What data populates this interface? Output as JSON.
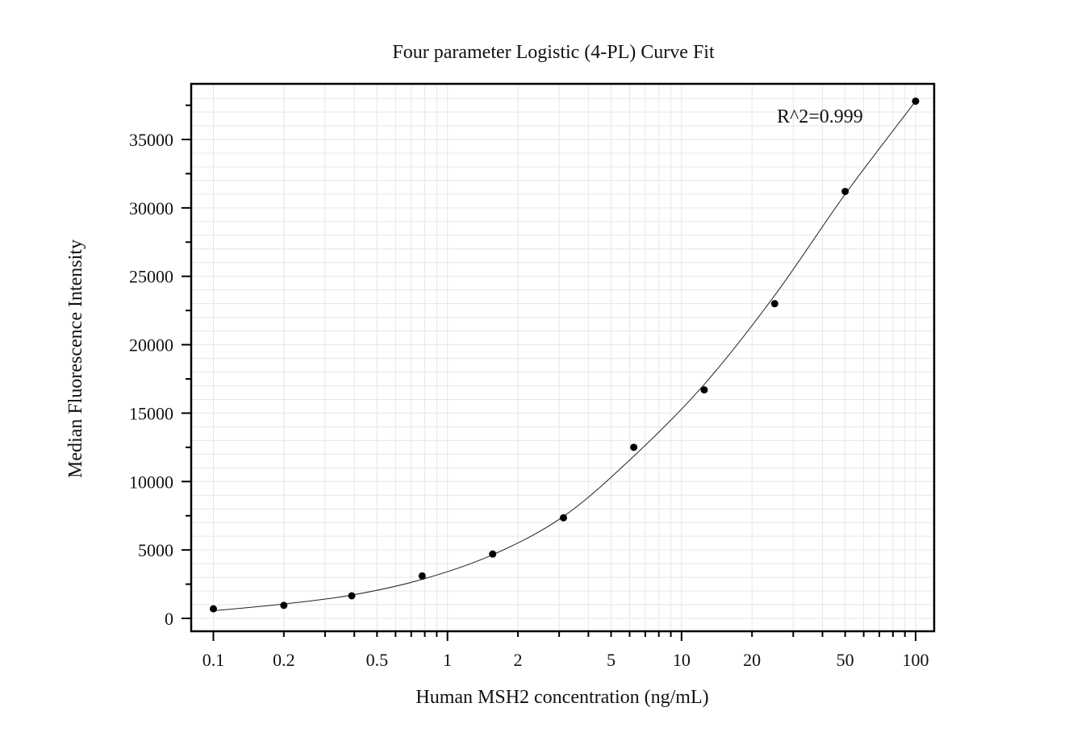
{
  "chart_data": {
    "type": "scatter",
    "title": "Four parameter Logistic (4-PL) Curve Fit",
    "xlabel": "Human MSH2 concentration (ng/mL)",
    "ylabel": "Median Fluorescence Intensity",
    "x_scale": "log",
    "xlim": [
      0.08,
      110
    ],
    "ylim": [
      -1000,
      39000
    ],
    "grid": true,
    "x_ticks": [
      0.1,
      0.2,
      0.5,
      1,
      2,
      5,
      10,
      20,
      50,
      100
    ],
    "x_tick_labels": [
      "0.1",
      "0.2",
      "0.5",
      "1",
      "2",
      "5",
      "10",
      "20",
      "50",
      "100"
    ],
    "y_ticks": [
      0,
      5000,
      10000,
      15000,
      20000,
      25000,
      30000,
      35000
    ],
    "y_tick_labels": [
      "0",
      "5000",
      "10000",
      "15000",
      "20000",
      "25000",
      "30000",
      "35000"
    ],
    "series": [
      {
        "kind": "points",
        "x": [
          0.1,
          0.2,
          0.39,
          0.78,
          1.56,
          3.13,
          6.25,
          12.5,
          25,
          50,
          100
        ],
        "y": [
          700,
          950,
          1650,
          3100,
          4700,
          7350,
          12500,
          16700,
          23000,
          31200,
          37800
        ]
      },
      {
        "kind": "fit_curve",
        "x": [
          0.1,
          0.2,
          0.39,
          0.78,
          1.56,
          3.13,
          6.25,
          12.5,
          25,
          50,
          100
        ],
        "y": [
          550,
          1050,
          1700,
          2850,
          4650,
          7450,
          11850,
          17100,
          23600,
          31000,
          37800
        ]
      }
    ],
    "annotations": [
      {
        "text": "R^2=0.999",
        "placement": "top-right"
      }
    ],
    "legend": "none"
  }
}
